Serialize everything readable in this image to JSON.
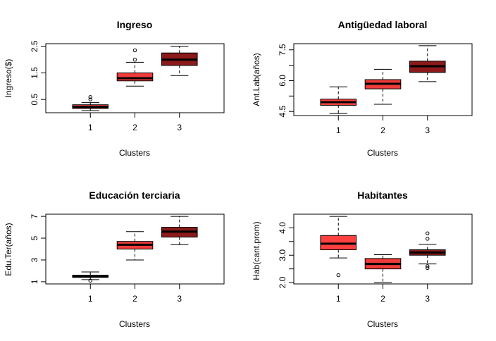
{
  "chart_data": [
    {
      "type": "box",
      "title": "Ingreso",
      "xlabel": "Clusters",
      "ylabel": "Ingreso($)",
      "categories": [
        "1",
        "2",
        "3"
      ],
      "ylim": [
        0.0,
        2.6
      ],
      "yticks": [
        0.5,
        1.5,
        2.5
      ],
      "ytick_labels": [
        "0.5",
        "1.5",
        "2.5"
      ],
      "grid": false,
      "colors": [
        "#ff4040",
        "#ee3b3b",
        "#8b1a1a"
      ],
      "boxes": [
        {
          "name": "1",
          "whisker_low": 0.08,
          "q1": 0.16,
          "median": 0.22,
          "q3": 0.3,
          "whisker_high": 0.38,
          "outliers": [
            0.5,
            0.59
          ]
        },
        {
          "name": "2",
          "whisker_low": 1.0,
          "q1": 1.2,
          "median": 1.3,
          "q3": 1.5,
          "whisker_high": 1.9,
          "outliers": [
            2.0,
            2.35
          ]
        },
        {
          "name": "3",
          "whisker_low": 1.4,
          "q1": 1.78,
          "median": 2.0,
          "q3": 2.25,
          "whisker_high": 2.5,
          "outliers": []
        }
      ]
    },
    {
      "type": "box",
      "title": "Antigüedad laboral",
      "xlabel": "Clusters",
      "ylabel": "Ant.Lab(años)",
      "categories": [
        "1",
        "2",
        "3"
      ],
      "ylim": [
        4.3,
        7.8
      ],
      "yticks": [
        4.5,
        6.0,
        7.5
      ],
      "ytick_labels": [
        "4.5",
        "6.0",
        "7.5"
      ],
      "yticks_minor": [
        5.25,
        6.75
      ],
      "grid": false,
      "colors": [
        "#ff4040",
        "#ee3b3b",
        "#8b1a1a"
      ],
      "boxes": [
        {
          "name": "1",
          "whisker_low": 4.4,
          "q1": 4.8,
          "median": 4.95,
          "q3": 5.1,
          "whisker_high": 5.7,
          "outliers": []
        },
        {
          "name": "2",
          "whisker_low": 4.85,
          "q1": 5.6,
          "median": 5.85,
          "q3": 6.05,
          "whisker_high": 6.55,
          "outliers": []
        },
        {
          "name": "3",
          "whisker_low": 5.95,
          "q1": 6.4,
          "median": 6.7,
          "q3": 6.95,
          "whisker_high": 7.7,
          "outliers": []
        }
      ]
    },
    {
      "type": "box",
      "title": "Educación terciaria",
      "xlabel": "Clusters",
      "ylabel": "Edu.Ter(años)",
      "categories": [
        "1",
        "2",
        "3"
      ],
      "ylim": [
        0.8,
        7.2
      ],
      "yticks": [
        1,
        3,
        5,
        7
      ],
      "ytick_labels": [
        "1",
        "3",
        "5",
        "7"
      ],
      "grid": false,
      "colors": [
        "#ff4040",
        "#ee3b3b",
        "#8b1a1a"
      ],
      "boxes": [
        {
          "name": "1",
          "whisker_low": 1.2,
          "q1": 1.4,
          "median": 1.5,
          "q3": 1.6,
          "whisker_high": 1.9,
          "outliers": [
            1.1
          ]
        },
        {
          "name": "2",
          "whisker_low": 3.0,
          "q1": 4.0,
          "median": 4.4,
          "q3": 4.7,
          "whisker_high": 5.6,
          "outliers": []
        },
        {
          "name": "3",
          "whisker_low": 4.4,
          "q1": 5.1,
          "median": 5.6,
          "q3": 6.0,
          "whisker_high": 7.0,
          "outliers": []
        }
      ]
    },
    {
      "type": "box",
      "title": "Habitantes",
      "xlabel": "Clusters",
      "ylabel": "Hab(cant.prom)",
      "categories": [
        "1",
        "2",
        "3"
      ],
      "ylim": [
        1.95,
        4.5
      ],
      "yticks": [
        2.0,
        3.0,
        4.0
      ],
      "ytick_labels": [
        "2.0",
        "3.0",
        "4.0"
      ],
      "yticks_minor": [
        2.5,
        3.5
      ],
      "grid": false,
      "colors": [
        "#ff4040",
        "#ee3b3b",
        "#8b1a1a"
      ],
      "boxes": [
        {
          "name": "1",
          "whisker_low": 2.9,
          "q1": 3.2,
          "median": 3.42,
          "q3": 3.72,
          "whisker_high": 4.42,
          "outliers": [
            2.27
          ]
        },
        {
          "name": "2",
          "whisker_low": 2.0,
          "q1": 2.5,
          "median": 2.68,
          "q3": 2.88,
          "whisker_high": 3.02,
          "outliers": []
        },
        {
          "name": "3",
          "whisker_low": 2.68,
          "q1": 3.0,
          "median": 3.1,
          "q3": 3.2,
          "whisker_high": 3.4,
          "outliers": [
            2.53,
            2.6,
            3.6,
            3.8
          ]
        }
      ]
    }
  ]
}
